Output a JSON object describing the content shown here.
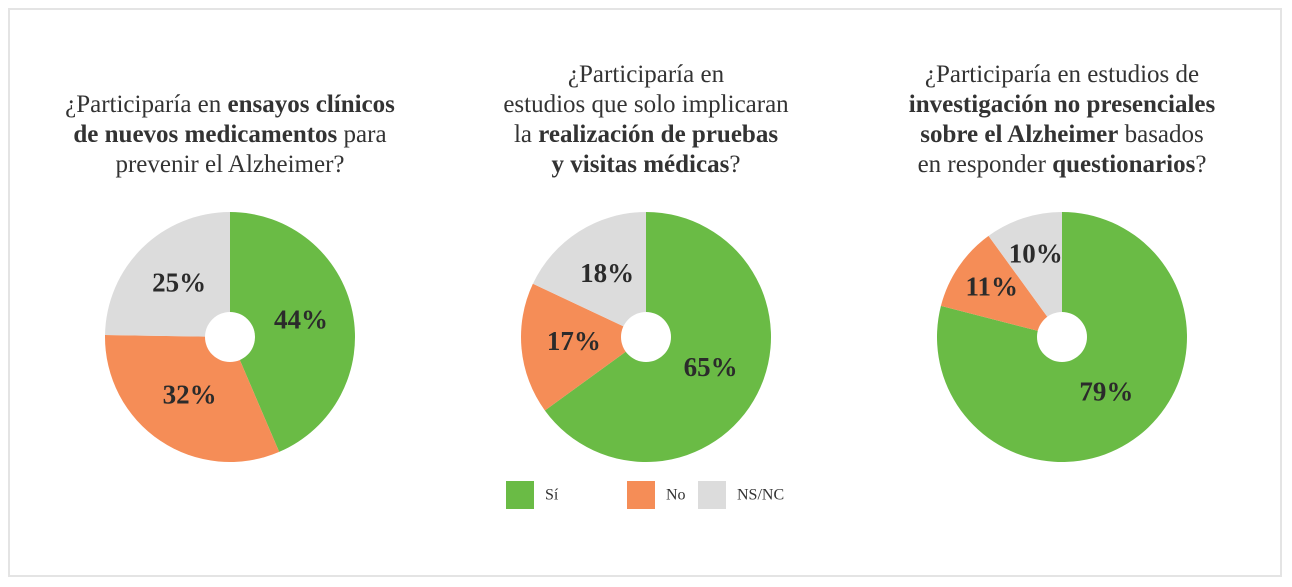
{
  "chart_data": [
    {
      "type": "pie",
      "title_lines": [
        [
          {
            "text": "¿Participaría en ",
            "bold": false
          },
          {
            "text": "ensayos clínicos",
            "bold": true
          }
        ],
        [
          {
            "text": "de nuevos medicamentos",
            "bold": true
          },
          {
            "text": " para",
            "bold": false
          }
        ],
        [
          {
            "text": "prevenir el Alzheimer?",
            "bold": false
          }
        ]
      ],
      "categories": [
        "Sí",
        "No",
        "NS/NC"
      ],
      "values": [
        44,
        32,
        25
      ],
      "value_labels": [
        "44%",
        "32%",
        "25%"
      ],
      "colors": [
        "#6abb45",
        "#f58d57",
        "#dcdcdc"
      ]
    },
    {
      "type": "pie",
      "title_lines": [
        [
          {
            "text": "¿Participaría en",
            "bold": false
          }
        ],
        [
          {
            "text": "estudios que solo implicaran",
            "bold": false
          }
        ],
        [
          {
            "text": "la ",
            "bold": false
          },
          {
            "text": "realización de pruebas",
            "bold": true
          }
        ],
        [
          {
            "text": "y visitas médicas",
            "bold": true
          },
          {
            "text": "?",
            "bold": false
          }
        ]
      ],
      "categories": [
        "Sí",
        "No",
        "NS/NC"
      ],
      "values": [
        65,
        17,
        18
      ],
      "value_labels": [
        "65%",
        "17%",
        "18%"
      ],
      "colors": [
        "#6abb45",
        "#f58d57",
        "#dcdcdc"
      ]
    },
    {
      "type": "pie",
      "title_lines": [
        [
          {
            "text": "¿Participaría en estudios de",
            "bold": false
          }
        ],
        [
          {
            "text": "investigación no presenciales",
            "bold": true
          }
        ],
        [
          {
            "text": "sobre el Alzheimer",
            "bold": true
          },
          {
            "text": " basados",
            "bold": false
          }
        ],
        [
          {
            "text": "en responder ",
            "bold": false
          },
          {
            "text": "questionarios",
            "bold": true
          },
          {
            "text": "?",
            "bold": false
          }
        ]
      ],
      "categories": [
        "Sí",
        "No",
        "NS/NC"
      ],
      "values": [
        79,
        11,
        10
      ],
      "value_labels": [
        "79%",
        "11%",
        "10%"
      ],
      "colors": [
        "#6abb45",
        "#f58d57",
        "#dcdcdc"
      ]
    }
  ]
}
